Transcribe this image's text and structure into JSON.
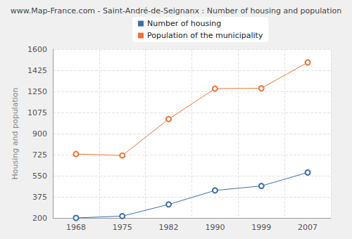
{
  "chart_data": {
    "type": "line",
    "title": "www.Map-France.com - Saint-André-de-Seignanx : Number of housing and population",
    "y_label": "Housing and population",
    "categories": [
      "1968",
      "1975",
      "1982",
      "1990",
      "1999",
      "2007"
    ],
    "series": [
      {
        "name": "Number of housing",
        "color": "#3a6ea5",
        "values": [
          200,
          215,
          312,
          428,
          465,
          577
        ]
      },
      {
        "name": "Population of the municipality",
        "color": "#e8743b",
        "values": [
          730,
          718,
          1020,
          1273,
          1276,
          1490
        ]
      }
    ],
    "ylim": [
      200,
      1600
    ],
    "yticks": [
      200,
      375,
      550,
      725,
      900,
      1075,
      1250,
      1425,
      1600
    ],
    "grid": true,
    "legend": "top",
    "marker": "circle",
    "line_style": "solid"
  }
}
